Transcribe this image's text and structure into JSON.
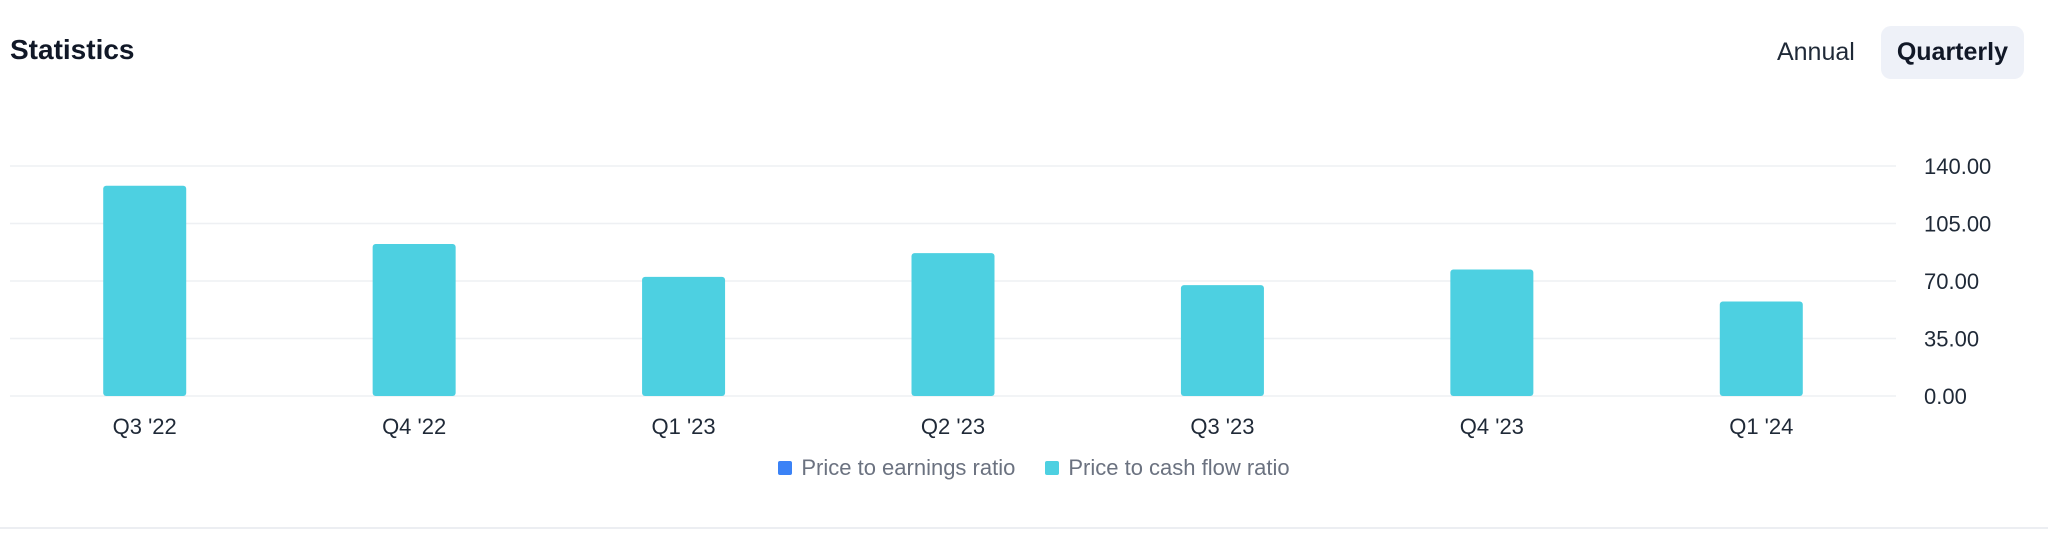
{
  "header": {
    "title": "Statistics",
    "toggle": {
      "annual_label": "Annual",
      "quarterly_label": "Quarterly",
      "selected": "Quarterly"
    }
  },
  "colors": {
    "price_to_earnings": "#3b82f6",
    "price_to_cash_flow": "#4dd0e1",
    "grid": "#eef0f3"
  },
  "chart_data": {
    "type": "bar",
    "categories": [
      "Q3 '22",
      "Q4 '22",
      "Q1 '23",
      "Q2 '23",
      "Q3 '23",
      "Q4 '23",
      "Q1 '24"
    ],
    "series": [
      {
        "name": "Price to earnings ratio",
        "values": [
          0,
          0,
          0,
          0,
          0,
          0,
          0
        ]
      },
      {
        "name": "Price to cash flow ratio",
        "values": [
          128,
          92.5,
          72.5,
          87,
          67.5,
          77,
          57.5
        ]
      }
    ],
    "y_ticks": [
      "0.00",
      "35.00",
      "70.00",
      "105.00",
      "140.00"
    ],
    "ylim": [
      0,
      140
    ],
    "y_axis_position": "right",
    "grid": true,
    "legend_placement": "bottom-center"
  }
}
